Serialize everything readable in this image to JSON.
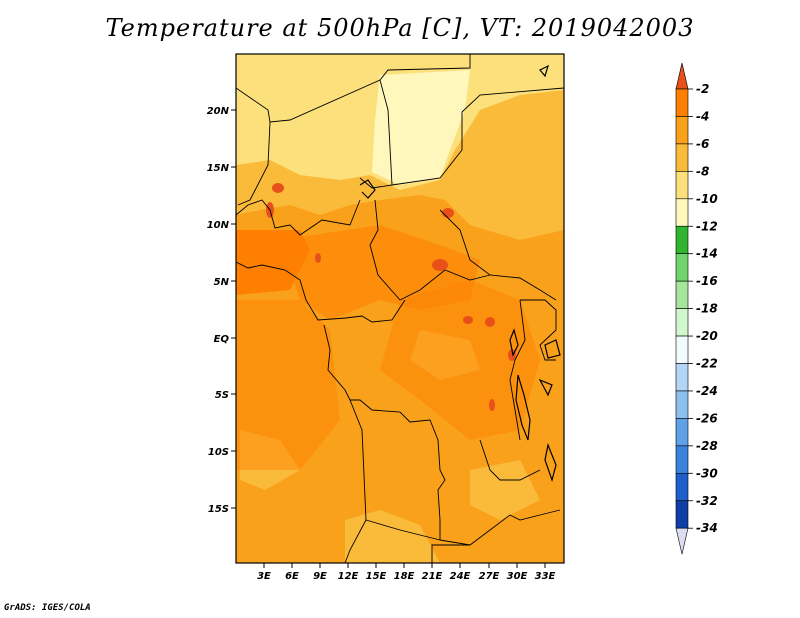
{
  "title": "Temperature at 500hPa [C], VT: 2019042003",
  "credit": "GrADS: IGES/COLA",
  "map": {
    "lat_ticks": [
      "20N",
      "15N",
      "10N",
      "5N",
      "EQ",
      "5S",
      "10S",
      "15S"
    ],
    "lon_ticks": [
      "3E",
      "6E",
      "9E",
      "12E",
      "15E",
      "18E",
      "21E",
      "24E",
      "27E",
      "30E",
      "33E"
    ],
    "field_levels_shown": [
      "-4",
      "-6",
      "-8",
      "-10"
    ]
  },
  "colorbar": {
    "labels": [
      "-2",
      "-4",
      "-6",
      "-8",
      "-10",
      "-12",
      "-14",
      "-16",
      "-18",
      "-20",
      "-22",
      "-24",
      "-26",
      "-28",
      "-30",
      "-32",
      "-34"
    ],
    "colors": [
      "#e8501a",
      "#ff7f00",
      "#f9a11b",
      "#fbbb3a",
      "#fce07c",
      "#fff7bc",
      "#31b531",
      "#6fd46b",
      "#a5e59c",
      "#d2f6cd",
      "#f1fbfd",
      "#b4d6f6",
      "#8cc0ef",
      "#5fa0e6",
      "#3b82de",
      "#1f5fcc",
      "#0e3ea6",
      "#0a1f7a"
    ],
    "top_arrow_color": "#e8501a",
    "bottom_arrow_color": "#dcdcf2"
  }
}
